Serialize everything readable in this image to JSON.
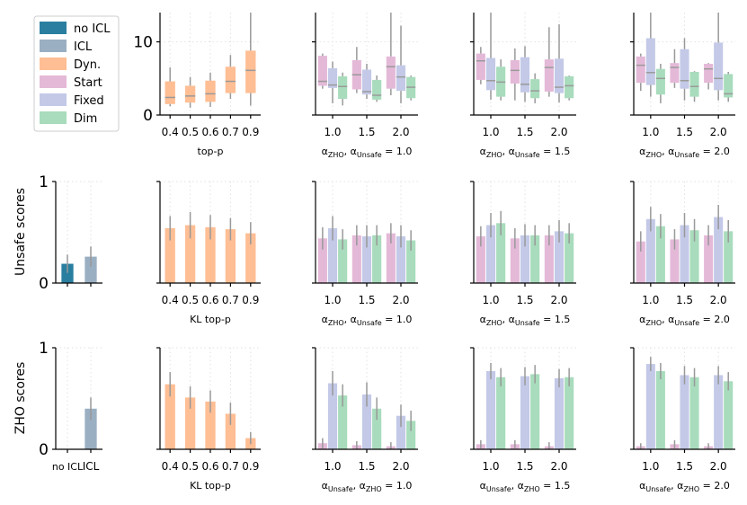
{
  "colors": {
    "noicl": "#2a7fa0",
    "icl": "#9aafc2",
    "dyn": "#ffbe94",
    "start": "#e4b9d8",
    "fixed": "#c3c9e7",
    "dim": "#a8dcbc",
    "err": "#999999",
    "median": "#9a9a9a"
  },
  "legend": [
    {
      "label": "no ICL",
      "color_key": "noicl"
    },
    {
      "label": "ICL",
      "color_key": "icl"
    },
    {
      "label": "Dyn.",
      "color_key": "dyn"
    },
    {
      "label": "Start",
      "color_key": "start"
    },
    {
      "label": "Fixed",
      "color_key": "fixed"
    },
    {
      "label": "Dim",
      "color_key": "dim"
    }
  ],
  "ylabels": {
    "row2": "Unsafe scores",
    "row3": "ZHO scores"
  },
  "chart_data": [
    {
      "id": "r1c2",
      "type": "box",
      "xlabel": "top-p",
      "categories": [
        "0.4",
        "0.5",
        "0.6",
        "0.7",
        "0.9"
      ],
      "ylim": [
        0,
        14
      ],
      "yticks": [
        0,
        10
      ],
      "ytick_labels": [
        "0",
        "10"
      ],
      "series": [
        {
          "name": "Dyn.",
          "color_key": "dyn",
          "boxes": [
            {
              "lo": 1.2,
              "q1": 1.5,
              "med": 2.4,
              "q3": 4.6,
              "hi": 6.5
            },
            {
              "lo": 1.0,
              "q1": 1.7,
              "med": 2.6,
              "q3": 4.0,
              "hi": 5.2
            },
            {
              "lo": 1.1,
              "q1": 1.8,
              "med": 2.9,
              "q3": 4.7,
              "hi": 5.8
            },
            {
              "lo": 2.2,
              "q1": 3.0,
              "med": 4.6,
              "q3": 6.6,
              "hi": 8.2
            },
            {
              "lo": 1.3,
              "q1": 3.0,
              "med": 6.1,
              "q3": 8.8,
              "hi": 14.2
            }
          ]
        }
      ]
    },
    {
      "id": "r1c3",
      "type": "box",
      "xlabel": "αZHO, αUnsafe = 1.0",
      "categories": [
        "1.0",
        "1.5",
        "2.0"
      ],
      "ylim": [
        0,
        14
      ],
      "yticks": [
        0,
        10
      ],
      "ytick_labels": [],
      "series": [
        {
          "name": "Start",
          "color_key": "start",
          "boxes": [
            {
              "lo": 3.6,
              "q1": 4.0,
              "med": 4.6,
              "q3": 8.1,
              "hi": 8.4
            },
            {
              "lo": 3.0,
              "q1": 3.5,
              "med": 5.5,
              "q3": 7.5,
              "hi": 9.3
            },
            {
              "lo": 2.7,
              "q1": 3.6,
              "med": 6.6,
              "q3": 8.0,
              "hi": 14.2
            }
          ]
        },
        {
          "name": "Fixed",
          "color_key": "fixed",
          "boxes": [
            {
              "lo": 1.6,
              "q1": 3.7,
              "med": 4.1,
              "q3": 6.4,
              "hi": 7.3
            },
            {
              "lo": 2.2,
              "q1": 2.8,
              "med": 3.2,
              "q3": 6.2,
              "hi": 7.0
            },
            {
              "lo": 1.6,
              "q1": 3.3,
              "med": 5.2,
              "q3": 6.8,
              "hi": 12.2
            }
          ]
        },
        {
          "name": "Dim",
          "color_key": "dim",
          "boxes": [
            {
              "lo": 1.3,
              "q1": 2.2,
              "med": 3.9,
              "q3": 5.3,
              "hi": 5.8
            },
            {
              "lo": 1.8,
              "q1": 2.1,
              "med": 2.7,
              "q3": 4.8,
              "hi": 5.4
            },
            {
              "lo": 2.0,
              "q1": 2.3,
              "med": 3.8,
              "q3": 5.2,
              "hi": 5.4
            }
          ]
        }
      ]
    },
    {
      "id": "r1c4",
      "type": "box",
      "xlabel": "αZHO, αUnsafe = 1.5",
      "categories": [
        "1.0",
        "1.5",
        "2.0"
      ],
      "ylim": [
        0,
        14
      ],
      "yticks": [
        0,
        10
      ],
      "ytick_labels": [],
      "series": [
        {
          "name": "Start",
          "color_key": "start",
          "boxes": [
            {
              "lo": 4.2,
              "q1": 4.8,
              "med": 7.4,
              "q3": 8.4,
              "hi": 9.3
            },
            {
              "lo": 2.0,
              "q1": 4.3,
              "med": 6.1,
              "q3": 7.5,
              "hi": 9.1
            },
            {
              "lo": 2.5,
              "q1": 3.2,
              "med": 6.5,
              "q3": 7.6,
              "hi": 12.0
            }
          ]
        },
        {
          "name": "Fixed",
          "color_key": "fixed",
          "boxes": [
            {
              "lo": 2.1,
              "q1": 3.4,
              "med": 4.7,
              "q3": 7.8,
              "hi": 14.2
            },
            {
              "lo": 1.8,
              "q1": 3.1,
              "med": 4.2,
              "q3": 7.9,
              "hi": 9.4
            },
            {
              "lo": 1.7,
              "q1": 3.0,
              "med": 3.8,
              "q3": 7.7,
              "hi": 12.4
            }
          ]
        },
        {
          "name": "Dim",
          "color_key": "dim",
          "boxes": [
            {
              "lo": 2.0,
              "q1": 2.5,
              "med": 4.5,
              "q3": 6.6,
              "hi": 7.6
            },
            {
              "lo": 1.6,
              "q1": 2.3,
              "med": 3.3,
              "q3": 4.9,
              "hi": 5.7
            },
            {
              "lo": 2.0,
              "q1": 2.3,
              "med": 4.0,
              "q3": 5.3,
              "hi": 5.4
            }
          ]
        }
      ]
    },
    {
      "id": "r1c5",
      "type": "box",
      "xlabel": "αZHO, αUnsafe = 2.0",
      "categories": [
        "1.0",
        "1.5",
        "2.0"
      ],
      "ylim": [
        0,
        14
      ],
      "yticks": [
        0,
        10
      ],
      "ytick_labels": [],
      "series": [
        {
          "name": "Start",
          "color_key": "start",
          "boxes": [
            {
              "lo": 3.3,
              "q1": 4.4,
              "med": 6.8,
              "q3": 8.0,
              "hi": 8.4
            },
            {
              "lo": 3.7,
              "q1": 4.4,
              "med": 6.5,
              "q3": 7.1,
              "hi": 9.0
            },
            {
              "lo": 3.5,
              "q1": 4.4,
              "med": 6.3,
              "q3": 7.0,
              "hi": 7.1
            }
          ]
        },
        {
          "name": "Fixed",
          "color_key": "fixed",
          "boxes": [
            {
              "lo": 2.5,
              "q1": 4.1,
              "med": 5.8,
              "q3": 10.5,
              "hi": 14.2
            },
            {
              "lo": 2.0,
              "q1": 3.6,
              "med": 4.7,
              "q3": 9.0,
              "hi": 10.5
            },
            {
              "lo": 2.0,
              "q1": 3.4,
              "med": 5.0,
              "q3": 9.9,
              "hi": 14.2
            }
          ]
        },
        {
          "name": "Dim",
          "color_key": "dim",
          "boxes": [
            {
              "lo": 1.6,
              "q1": 2.8,
              "med": 5.0,
              "q3": 6.3,
              "hi": 7.0
            },
            {
              "lo": 1.8,
              "q1": 2.5,
              "med": 3.9,
              "q3": 5.9,
              "hi": 6.0
            },
            {
              "lo": 1.8,
              "q1": 2.4,
              "med": 2.9,
              "q3": 5.6,
              "hi": 5.9
            }
          ]
        }
      ]
    },
    {
      "id": "r2c1",
      "type": "bar",
      "xlabel": "",
      "categories": [
        "no ICL",
        "ICL"
      ],
      "show_xticklabels": false,
      "ylim": [
        0,
        1
      ],
      "yticks": [
        0,
        1
      ],
      "ytick_labels": [
        "0",
        "1"
      ],
      "series": [
        {
          "name": "Bars",
          "color_keys": [
            "noicl",
            "icl"
          ],
          "values": [
            0.19,
            0.26
          ],
          "err": [
            0.09,
            0.1
          ]
        }
      ]
    },
    {
      "id": "r2c2",
      "type": "bar",
      "xlabel": "KL top-p",
      "categories": [
        "0.4",
        "0.5",
        "0.6",
        "0.7",
        "0.9"
      ],
      "ylim": [
        0,
        1
      ],
      "yticks": [
        0,
        1
      ],
      "ytick_labels": [],
      "series": [
        {
          "name": "Dyn.",
          "color_key": "dyn",
          "values": [
            0.54,
            0.57,
            0.55,
            0.53,
            0.49
          ],
          "err": [
            0.12,
            0.13,
            0.12,
            0.11,
            0.11
          ]
        }
      ]
    },
    {
      "id": "r2c3",
      "type": "bar",
      "xlabel": "αZHO, αUnsafe = 1.0",
      "categories": [
        "1.0",
        "1.5",
        "2.0"
      ],
      "ylim": [
        0,
        1
      ],
      "yticks": [
        0,
        1
      ],
      "ytick_labels": [],
      "series": [
        {
          "name": "Start",
          "color_key": "start",
          "values": [
            0.44,
            0.47,
            0.49
          ],
          "err": [
            0.11,
            0.1,
            0.1
          ]
        },
        {
          "name": "Fixed",
          "color_key": "fixed",
          "values": [
            0.54,
            0.46,
            0.46
          ],
          "err": [
            0.12,
            0.11,
            0.11
          ]
        },
        {
          "name": "Dim",
          "color_key": "dim",
          "values": [
            0.43,
            0.47,
            0.42
          ],
          "err": [
            0.1,
            0.1,
            0.1
          ]
        }
      ]
    },
    {
      "id": "r2c4",
      "type": "bar",
      "xlabel": "αZHO, αUnsafe = 1.5",
      "categories": [
        "1.0",
        "1.5",
        "2.0"
      ],
      "ylim": [
        0,
        1
      ],
      "yticks": [
        0,
        1
      ],
      "ytick_labels": [],
      "series": [
        {
          "name": "Start",
          "color_key": "start",
          "values": [
            0.46,
            0.44,
            0.47
          ],
          "err": [
            0.1,
            0.1,
            0.1
          ]
        },
        {
          "name": "Fixed",
          "color_key": "fixed",
          "values": [
            0.57,
            0.47,
            0.51
          ],
          "err": [
            0.12,
            0.11,
            0.11
          ]
        },
        {
          "name": "Dim",
          "color_key": "dim",
          "values": [
            0.59,
            0.47,
            0.49
          ],
          "err": [
            0.12,
            0.1,
            0.1
          ]
        }
      ]
    },
    {
      "id": "r2c5",
      "type": "bar",
      "xlabel": "αZHO, αUnsafe = 2.0",
      "categories": [
        "1.0",
        "1.5",
        "2.0"
      ],
      "ylim": [
        0,
        1
      ],
      "yticks": [
        0,
        1
      ],
      "ytick_labels": [],
      "series": [
        {
          "name": "Start",
          "color_key": "start",
          "values": [
            0.41,
            0.43,
            0.47
          ],
          "err": [
            0.1,
            0.1,
            0.1
          ]
        },
        {
          "name": "Fixed",
          "color_key": "fixed",
          "values": [
            0.63,
            0.57,
            0.65
          ],
          "err": [
            0.12,
            0.12,
            0.12
          ]
        },
        {
          "name": "Dim",
          "color_key": "dim",
          "values": [
            0.56,
            0.52,
            0.51
          ],
          "err": [
            0.12,
            0.11,
            0.11
          ]
        }
      ]
    },
    {
      "id": "r3c1",
      "type": "bar",
      "xlabel": "",
      "categories": [
        "no ICL",
        "ICL"
      ],
      "show_xticklabels": true,
      "ylim": [
        0,
        1
      ],
      "yticks": [
        0,
        1
      ],
      "ytick_labels": [
        "0",
        "1"
      ],
      "series": [
        {
          "name": "Bars",
          "color_keys": [
            "noicl",
            "icl"
          ],
          "values": [
            0.0,
            0.4
          ],
          "err": [
            0.0,
            0.11
          ]
        }
      ]
    },
    {
      "id": "r3c2",
      "type": "bar",
      "xlabel": "KL top-p",
      "categories": [
        "0.4",
        "0.5",
        "0.6",
        "0.7",
        "0.9"
      ],
      "ylim": [
        0,
        1
      ],
      "yticks": [
        0,
        1
      ],
      "ytick_labels": [],
      "series": [
        {
          "name": "Dyn.",
          "color_key": "dyn",
          "values": [
            0.64,
            0.51,
            0.47,
            0.35,
            0.11
          ],
          "err": [
            0.12,
            0.11,
            0.11,
            0.11,
            0.06
          ]
        }
      ]
    },
    {
      "id": "r3c3",
      "type": "bar",
      "xlabel": "αUnsafe, αZHO = 1.0",
      "categories": [
        "1.0",
        "1.5",
        "2.0"
      ],
      "ylim": [
        0,
        1
      ],
      "yticks": [
        0,
        1
      ],
      "ytick_labels": [],
      "series": [
        {
          "name": "Start",
          "color_key": "start",
          "values": [
            0.06,
            0.04,
            0.03
          ],
          "err": [
            0.05,
            0.04,
            0.04
          ]
        },
        {
          "name": "Fixed",
          "color_key": "fixed",
          "values": [
            0.65,
            0.54,
            0.33
          ],
          "err": [
            0.12,
            0.12,
            0.11
          ]
        },
        {
          "name": "Dim",
          "color_key": "dim",
          "values": [
            0.53,
            0.4,
            0.28
          ],
          "err": [
            0.11,
            0.11,
            0.1
          ]
        }
      ]
    },
    {
      "id": "r3c4",
      "type": "bar",
      "xlabel": "αUnsafe, αZHO = 1.5",
      "categories": [
        "1.0",
        "1.5",
        "2.0"
      ],
      "ylim": [
        0,
        1
      ],
      "yticks": [
        0,
        1
      ],
      "ytick_labels": [],
      "series": [
        {
          "name": "Start",
          "color_key": "start",
          "values": [
            0.05,
            0.05,
            0.03
          ],
          "err": [
            0.04,
            0.04,
            0.04
          ]
        },
        {
          "name": "Fixed",
          "color_key": "fixed",
          "values": [
            0.77,
            0.72,
            0.7
          ],
          "err": [
            0.08,
            0.09,
            0.09
          ]
        },
        {
          "name": "Dim",
          "color_key": "dim",
          "values": [
            0.71,
            0.74,
            0.71
          ],
          "err": [
            0.09,
            0.09,
            0.09
          ]
        }
      ]
    },
    {
      "id": "r3c5",
      "type": "bar",
      "xlabel": "αUnsafe, αZHO = 2.0",
      "categories": [
        "1.0",
        "1.5",
        "2.0"
      ],
      "ylim": [
        0,
        1
      ],
      "yticks": [
        0,
        1
      ],
      "ytick_labels": [],
      "series": [
        {
          "name": "Start",
          "color_key": "start",
          "values": [
            0.03,
            0.05,
            0.03
          ],
          "err": [
            0.03,
            0.04,
            0.03
          ]
        },
        {
          "name": "Fixed",
          "color_key": "fixed",
          "values": [
            0.84,
            0.73,
            0.73
          ],
          "err": [
            0.07,
            0.09,
            0.09
          ]
        },
        {
          "name": "Dim",
          "color_key": "dim",
          "values": [
            0.77,
            0.71,
            0.67
          ],
          "err": [
            0.08,
            0.09,
            0.09
          ]
        }
      ]
    }
  ]
}
